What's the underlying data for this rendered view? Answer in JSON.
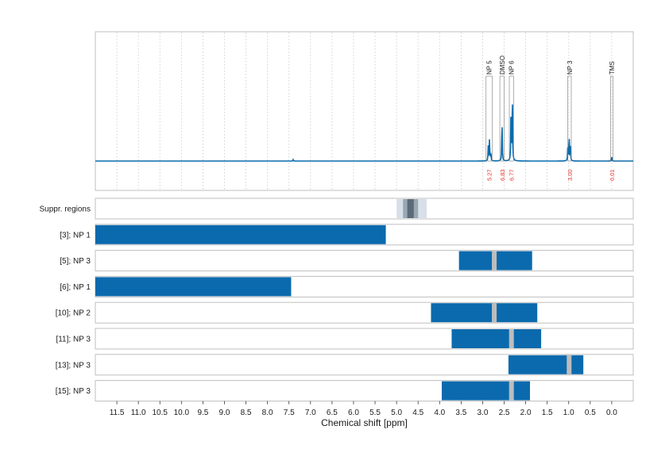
{
  "chart_data": {
    "type": "nmr-spectrum-with-region-bars",
    "xlabel": "Chemical shift [ppm]",
    "xlim": [
      12.0,
      -0.5
    ],
    "x_ticks": [
      "11.5",
      "11.0",
      "10.5",
      "10.0",
      "9.5",
      "9.0",
      "8.5",
      "8.0",
      "7.5",
      "7.0",
      "6.5",
      "6.0",
      "5.5",
      "5.0",
      "4.5",
      "4.0",
      "3.5",
      "3.0",
      "2.5",
      "2.0",
      "1.5",
      "1.0",
      "0.5",
      "0.0"
    ],
    "x_tick_values": [
      11.5,
      11.0,
      10.5,
      10.0,
      9.5,
      9.0,
      8.5,
      8.0,
      7.5,
      7.0,
      6.5,
      6.0,
      5.5,
      5.0,
      4.5,
      4.0,
      3.5,
      3.0,
      2.5,
      2.0,
      1.5,
      1.0,
      0.5,
      0.0
    ],
    "grid": "vertical dotted",
    "spectrum": {
      "color": "#0b6aad",
      "peaks": [
        {
          "shift": 7.4,
          "height": 0.02
        },
        {
          "shift": 2.87,
          "height": 0.18
        },
        {
          "shift": 2.84,
          "height": 0.28
        },
        {
          "shift": 2.81,
          "height": 0.12
        },
        {
          "shift": 2.55,
          "height": 0.55
        },
        {
          "shift": 2.34,
          "height": 0.68
        },
        {
          "shift": 2.31,
          "height": 0.9
        },
        {
          "shift": 1.02,
          "height": 0.2
        },
        {
          "shift": 0.99,
          "height": 0.35
        },
        {
          "shift": 0.96,
          "height": 0.18
        },
        {
          "shift": 0.0,
          "height": 0.05
        }
      ]
    },
    "annotations": [
      {
        "label": "NP 5",
        "from": 2.92,
        "to": 2.78,
        "integral": "5.27"
      },
      {
        "label": "DMSO",
        "from": 2.6,
        "to": 2.5,
        "integral": "6.83"
      },
      {
        "label": "NP 6",
        "from": 2.38,
        "to": 2.28,
        "integral": "6.77"
      },
      {
        "label": "NP 3",
        "from": 1.02,
        "to": 0.94,
        "integral": "3.00"
      },
      {
        "label": "TMS",
        "from": 0.03,
        "to": -0.03,
        "integral": "0.01"
      }
    ],
    "suppressed_regions": {
      "label": "Suppr. regions",
      "outer": [
        5.0,
        4.3
      ],
      "middle": [
        4.85,
        4.5
      ],
      "inner": [
        4.75,
        4.6
      ]
    },
    "region_rows": [
      {
        "label": "[3]; NP 1",
        "from": 12.0,
        "to": 5.25,
        "markers": []
      },
      {
        "label": "[5]; NP 3",
        "from": 3.55,
        "to": 1.85,
        "markers": [
          2.73
        ]
      },
      {
        "label": "[6]; NP 1",
        "from": 12.0,
        "to": 7.45,
        "markers": []
      },
      {
        "label": "[10]; NP 2",
        "from": 4.2,
        "to": 1.73,
        "markers": [
          2.73
        ]
      },
      {
        "label": "[11]; NP 3",
        "from": 3.72,
        "to": 1.64,
        "markers": [
          2.33
        ]
      },
      {
        "label": "[13]; NP 3",
        "from": 2.4,
        "to": 0.66,
        "markers": [
          0.99
        ]
      },
      {
        "label": "[15]; NP 3",
        "from": 3.95,
        "to": 1.9,
        "markers": [
          2.33
        ]
      }
    ],
    "colors": {
      "bar": "#0b6aad",
      "marker": "#bdbdbd",
      "integral_text": "#e8322f",
      "suppr_outer": "#d7dfe8",
      "suppr_middle": "#9ba7b2",
      "suppr_inner": "#5b6b78",
      "panel_border": "#bfbfbf",
      "grid": "#c8c8c8"
    }
  }
}
